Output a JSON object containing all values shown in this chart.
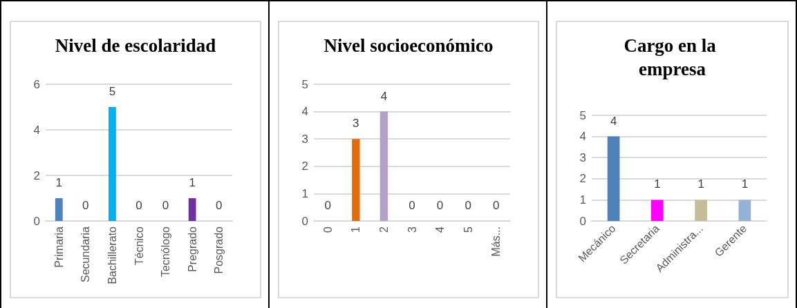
{
  "chart_data": [
    {
      "type": "bar",
      "title": "Nivel de escolaridad",
      "categories": [
        "Primaria",
        "Secundaria",
        "Bachillerato",
        "Técnico",
        "Tecnólogo",
        "Pregrado",
        "Posgrado"
      ],
      "values": [
        1,
        0,
        5,
        0,
        0,
        1,
        0
      ],
      "colors": [
        "#4f81bd",
        "#c0504d",
        "#00b0f0",
        "#9bbb59",
        "#8064a2",
        "#7030a0",
        "#f79646"
      ],
      "ylim": [
        0,
        6
      ],
      "yticks": [
        0,
        2,
        4,
        6
      ],
      "grid": "y",
      "data_labels": true
    },
    {
      "type": "bar",
      "title": "Nivel socioeconómico",
      "categories": [
        "0",
        "1",
        "2",
        "3",
        "4",
        "5",
        "Más..."
      ],
      "values": [
        0,
        3,
        4,
        0,
        0,
        0,
        0
      ],
      "colors": [
        "#4f81bd",
        "#e36c09",
        "#b2a1c7",
        "#9bbb59",
        "#8064a2",
        "#4bacc6",
        "#f79646"
      ],
      "ylim": [
        0,
        5
      ],
      "yticks": [
        0,
        1,
        2,
        3,
        4,
        5
      ],
      "grid": "y",
      "data_labels": true
    },
    {
      "type": "bar",
      "title": "Cargo en la empresa",
      "categories": [
        "Mecánico",
        "Secretaria",
        "Administra...",
        "Gerente"
      ],
      "values": [
        4,
        1,
        1,
        1
      ],
      "colors": [
        "#4f81bd",
        "#ff00ff",
        "#c4bd97",
        "#95b3d7"
      ],
      "ylim": [
        0,
        5
      ],
      "yticks": [
        0,
        1,
        2,
        3,
        4,
        5
      ],
      "grid": "y",
      "data_labels": true
    }
  ]
}
